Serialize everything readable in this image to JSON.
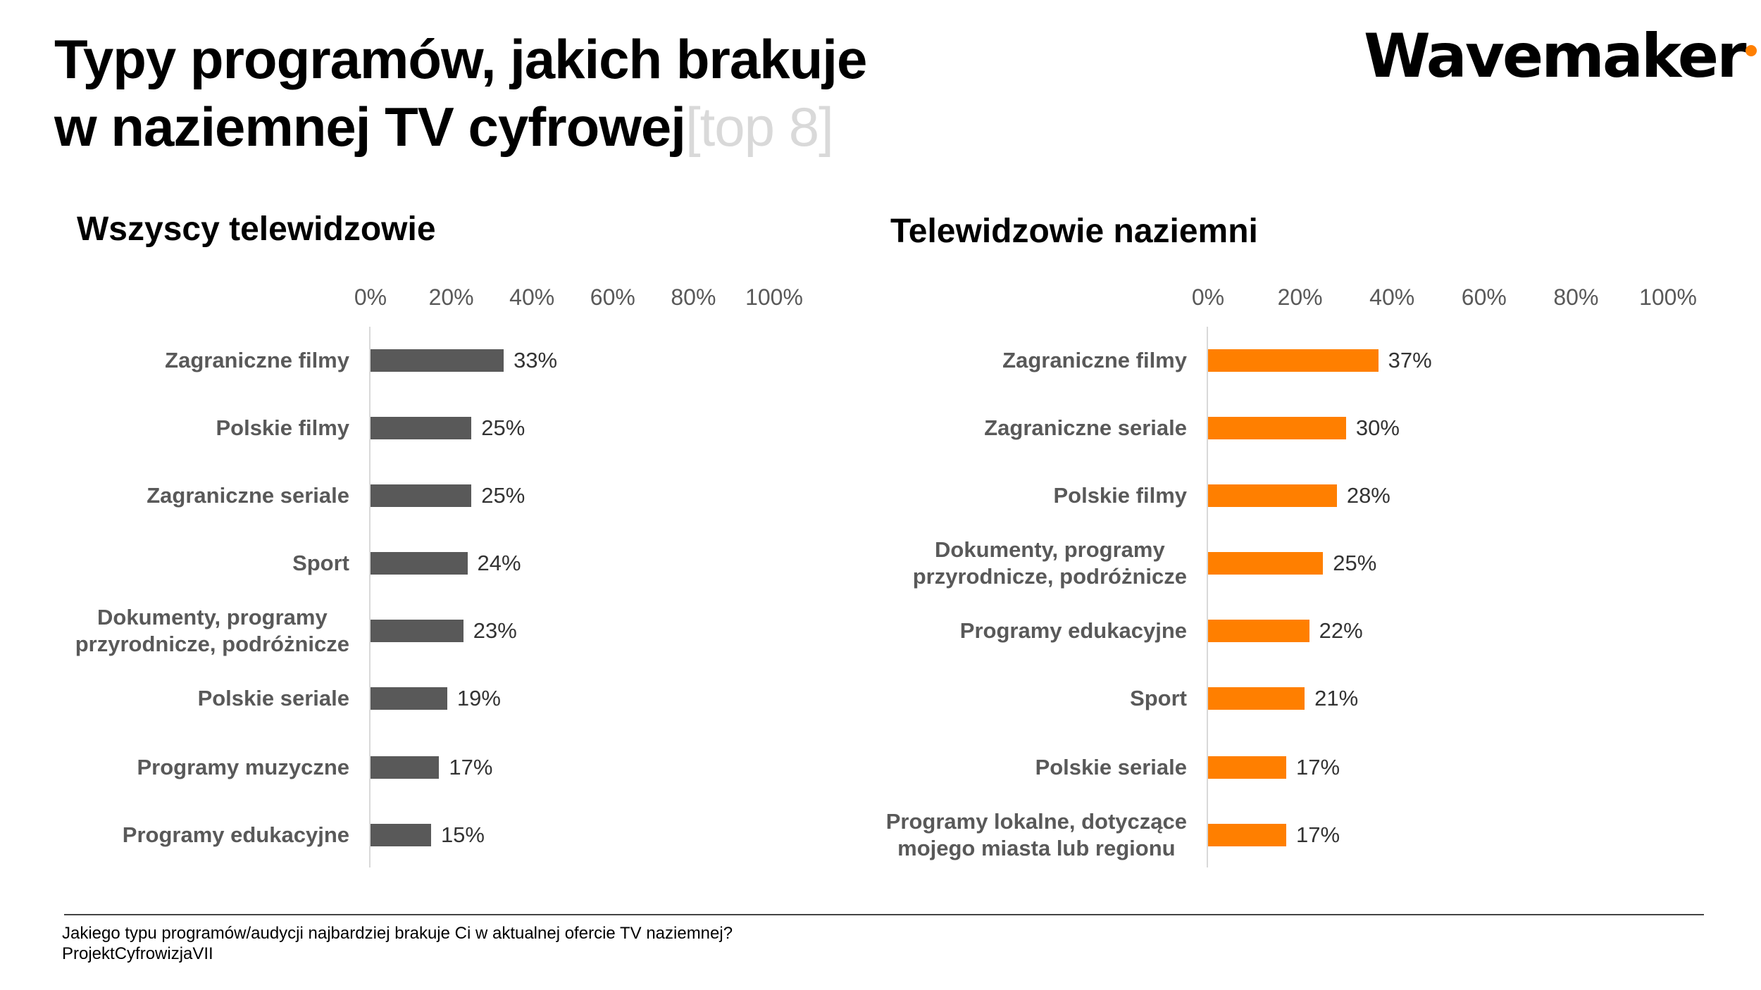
{
  "title": {
    "line1": "Typy programów, jakich brakuje",
    "line2": "w naziemnej TV cyfrowej",
    "suffix": "[top 8]"
  },
  "logo": {
    "text": "Wavemaker",
    "dot_color": "#ff7f00"
  },
  "footer": {
    "question": "Jakiego typu programów/audycji najbardziej brakuje Ci w aktualnej ofercie TV naziemnej?",
    "source": "ProjektCyfrowizjaVII"
  },
  "chart_data": [
    {
      "type": "bar",
      "orientation": "horizontal",
      "title": "Wszyscy telewidzowie",
      "xlim": [
        0,
        100
      ],
      "ticks": [
        "0%",
        "20%",
        "40%",
        "60%",
        "80%",
        "100%"
      ],
      "color": "#595959",
      "categories": [
        "Zagraniczne filmy",
        "Polskie filmy",
        "Zagraniczne seriale",
        "Sport",
        "Dokumenty, programy\nprzyrodnicze, podróżnicze",
        "Polskie seriale",
        "Programy muzyczne",
        "Programy edukacyjne"
      ],
      "values": [
        33,
        25,
        25,
        24,
        23,
        19,
        17,
        15
      ],
      "labels": [
        "33%",
        "25%",
        "25%",
        "24%",
        "23%",
        "19%",
        "17%",
        "15%"
      ]
    },
    {
      "type": "bar",
      "orientation": "horizontal",
      "title": "Telewidzowie naziemni",
      "xlim": [
        0,
        100
      ],
      "ticks": [
        "0%",
        "20%",
        "40%",
        "60%",
        "80%",
        "100%"
      ],
      "color": "#ff7f00",
      "categories": [
        "Zagraniczne filmy",
        "Zagraniczne seriale",
        "Polskie filmy",
        "Dokumenty, programy\nprzyrodnicze, podróżnicze",
        "Programy edukacyjne",
        "Sport",
        "Polskie seriale",
        "Programy lokalne, dotyczące\nmojego miasta lub regionu"
      ],
      "values": [
        37,
        30,
        28,
        25,
        22,
        21,
        17,
        17
      ],
      "labels": [
        "37%",
        "30%",
        "28%",
        "25%",
        "22%",
        "21%",
        "17%",
        "17%"
      ]
    }
  ]
}
